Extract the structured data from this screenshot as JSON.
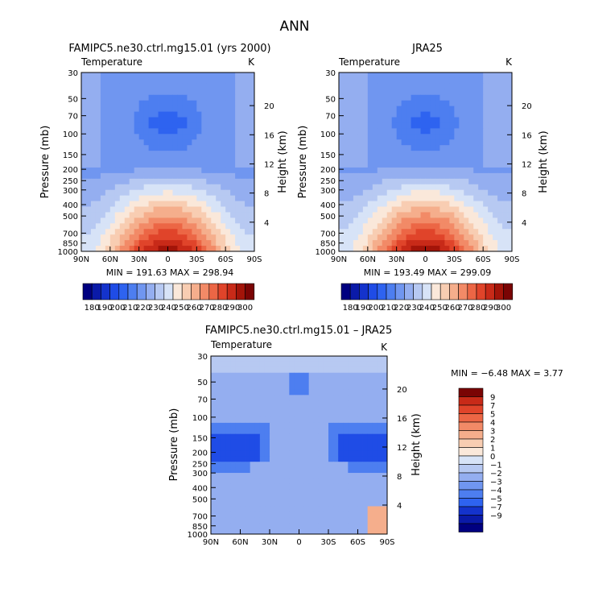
{
  "page_title": "ANN",
  "palette": [
    "#000080",
    "#0a1aa8",
    "#1433cc",
    "#1f4ce6",
    "#2e63f0",
    "#4d7ef0",
    "#7096f0",
    "#94aef0",
    "#b7c9f2",
    "#d7e3f7",
    "#fae8da",
    "#f8cdb2",
    "#f5ae8c",
    "#f28a67",
    "#ec6645",
    "#e0442a",
    "#c82a18",
    "#a31409",
    "#7a0404"
  ],
  "colorbar_top": {
    "labels": [
      "180",
      "190",
      "200",
      "210",
      "220",
      "230",
      "240",
      "250",
      "260",
      "270",
      "280",
      "290",
      "300"
    ]
  },
  "colorbar_diff": {
    "labels": [
      "9",
      "7",
      "5",
      "4",
      "3",
      "2",
      "1",
      "0",
      "−1",
      "−2",
      "−3",
      "−4",
      "−5",
      "−7",
      "−9"
    ],
    "levels": [
      9,
      7,
      5,
      4,
      3,
      2,
      1,
      0,
      -1,
      -2,
      -3,
      -4,
      -5,
      -7,
      -9
    ]
  },
  "chart_data": [
    {
      "type": "heatmap",
      "title": "FAMIPC5.ne30.ctrl.mg15.01 (yrs 2000)",
      "subtitle_left": "Temperature",
      "units": "K",
      "xlabel": "",
      "ylabel": "Pressure (mb)",
      "ylabel_right": "Height (km)",
      "x_ticks": [
        "90N",
        "60N",
        "30N",
        "0",
        "30S",
        "60S",
        "90S"
      ],
      "y_ticks": [
        "30",
        "50",
        "70",
        "100",
        "150",
        "200",
        "250",
        "300",
        "400",
        "500",
        "700",
        "850",
        "1000"
      ],
      "height_ticks": [
        "20",
        "16",
        "12",
        "8",
        "4"
      ],
      "min_text": "MIN = 191.63   MAX = 298.94",
      "min": 191.63,
      "max": 298.94
    },
    {
      "type": "heatmap",
      "title": "JRA25",
      "subtitle_left": "Temperature",
      "units": "K",
      "xlabel": "",
      "ylabel": "Pressure (mb)",
      "ylabel_right": "Height (km)",
      "x_ticks": [
        "90N",
        "60N",
        "30N",
        "0",
        "30S",
        "60S",
        "90S"
      ],
      "y_ticks": [
        "30",
        "50",
        "70",
        "100",
        "150",
        "200",
        "250",
        "300",
        "400",
        "500",
        "700",
        "850",
        "1000"
      ],
      "height_ticks": [
        "20",
        "16",
        "12",
        "8",
        "4"
      ],
      "min_text": "MIN = 193.49   MAX = 299.09",
      "min": 193.49,
      "max": 299.09
    },
    {
      "type": "heatmap",
      "title": "FAMIPC5.ne30.ctrl.mg15.01 – JRA25",
      "subtitle_left": "Temperature",
      "units": "K",
      "xlabel": "",
      "ylabel": "Pressure (mb)",
      "ylabel_right": "Height (km)",
      "x_ticks": [
        "90N",
        "60N",
        "30N",
        "0",
        "30S",
        "60S",
        "90S"
      ],
      "y_ticks": [
        "30",
        "50",
        "70",
        "100",
        "150",
        "200",
        "250",
        "300",
        "400",
        "500",
        "700",
        "850",
        "1000"
      ],
      "height_ticks": [
        "20",
        "16",
        "12",
        "8",
        "4"
      ],
      "min_text": "MIN =   −6.48   MAX =    3.77",
      "min": -6.48,
      "max": 3.77
    }
  ]
}
